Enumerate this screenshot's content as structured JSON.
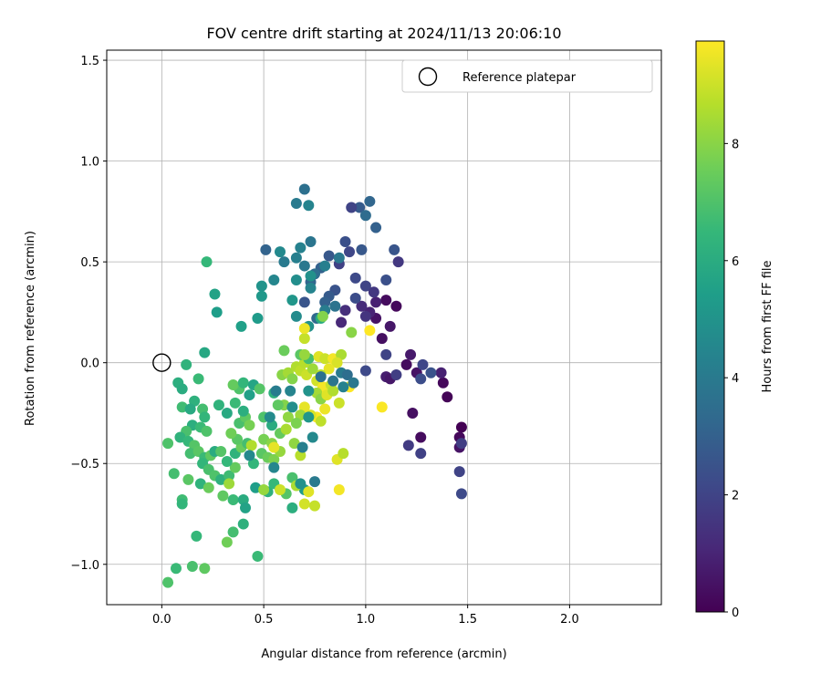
{
  "chart_data": {
    "type": "scatter",
    "title": "FOV centre drift starting at 2024/11/13 20:06:10",
    "xlabel": "Angular distance from reference (arcmin)",
    "ylabel": "Rotation from reference (arcmin)",
    "xlim": [
      -0.27,
      2.45
    ],
    "ylim": [
      -1.2,
      1.55
    ],
    "xticks": [
      0.0,
      0.5,
      1.0,
      1.5,
      2.0
    ],
    "xtick_labels": [
      "0.0",
      "0.5",
      "1.0",
      "1.5",
      "2.0"
    ],
    "yticks": [
      -1.0,
      -0.5,
      0.0,
      0.5,
      1.0,
      1.5
    ],
    "ytick_labels": [
      "−1.0",
      "−0.5",
      "0.0",
      "0.5",
      "1.0",
      "1.5"
    ],
    "grid": true,
    "legend": {
      "placement": "top-right",
      "entries": [
        {
          "label": "Reference platepar",
          "marker": "open-circle",
          "x": 0.0,
          "y": 0.0
        }
      ]
    },
    "colorbar": {
      "label": "Hours from first FF file",
      "colormap": "viridis",
      "range": [
        0,
        9.75
      ],
      "ticks": [
        0,
        2,
        4,
        6,
        8
      ],
      "tick_labels": [
        "0",
        "2",
        "4",
        "6",
        "8"
      ]
    },
    "colormap_stops": [
      "#440154",
      "#482878",
      "#3e4989",
      "#31688e",
      "#26828e",
      "#1f9e89",
      "#35b779",
      "#6ece58",
      "#b5de2b",
      "#fde725"
    ],
    "points": [
      {
        "x": 1.1,
        "y": 0.31,
        "t": 0.3
      },
      {
        "x": 1.15,
        "y": 0.28,
        "t": 0.2
      },
      {
        "x": 1.05,
        "y": 0.22,
        "t": 0.5
      },
      {
        "x": 1.12,
        "y": 0.18,
        "t": 0.6
      },
      {
        "x": 1.08,
        "y": 0.12,
        "t": 0.4
      },
      {
        "x": 1.22,
        "y": 0.04,
        "t": 0.7
      },
      {
        "x": 1.2,
        "y": -0.01,
        "t": 0.3
      },
      {
        "x": 1.25,
        "y": -0.05,
        "t": 0.5
      },
      {
        "x": 1.38,
        "y": -0.1,
        "t": 0.2
      },
      {
        "x": 1.4,
        "y": -0.17,
        "t": 0.1
      },
      {
        "x": 1.23,
        "y": -0.25,
        "t": 0.4
      },
      {
        "x": 1.27,
        "y": -0.37,
        "t": 0.3
      },
      {
        "x": 1.47,
        "y": -0.32,
        "t": 0.0
      },
      {
        "x": 1.46,
        "y": -0.37,
        "t": 0.2
      },
      {
        "x": 1.46,
        "y": -0.42,
        "t": 0.5
      },
      {
        "x": 1.1,
        "y": -0.07,
        "t": 0.8
      },
      {
        "x": 1.12,
        "y": -0.08,
        "t": 0.6
      },
      {
        "x": 1.37,
        "y": -0.05,
        "t": 0.9
      },
      {
        "x": 1.05,
        "y": 0.3,
        "t": 0.9
      },
      {
        "x": 1.02,
        "y": 0.25,
        "t": 1.0
      },
      {
        "x": 0.98,
        "y": 0.28,
        "t": 1.2
      },
      {
        "x": 0.88,
        "y": 0.2,
        "t": 1.1
      },
      {
        "x": 0.9,
        "y": 0.26,
        "t": 1.3
      },
      {
        "x": 1.0,
        "y": 0.23,
        "t": 1.5
      },
      {
        "x": 1.47,
        "y": -0.4,
        "t": 1.8
      },
      {
        "x": 1.46,
        "y": -0.54,
        "t": 2.0
      },
      {
        "x": 1.47,
        "y": -0.65,
        "t": 2.2
      },
      {
        "x": 1.27,
        "y": -0.45,
        "t": 1.9
      },
      {
        "x": 1.21,
        "y": -0.41,
        "t": 1.7
      },
      {
        "x": 1.28,
        "y": -0.01,
        "t": 2.1
      },
      {
        "x": 1.32,
        "y": -0.05,
        "t": 2.5
      },
      {
        "x": 1.27,
        "y": -0.08,
        "t": 2.3
      },
      {
        "x": 1.1,
        "y": 0.04,
        "t": 2.0
      },
      {
        "x": 1.15,
        "y": -0.06,
        "t": 1.8
      },
      {
        "x": 1.0,
        "y": -0.04,
        "t": 2.2
      },
      {
        "x": 1.1,
        "y": 0.41,
        "t": 2.4
      },
      {
        "x": 1.16,
        "y": 0.5,
        "t": 1.6
      },
      {
        "x": 1.14,
        "y": 0.56,
        "t": 2.6
      },
      {
        "x": 1.05,
        "y": 0.67,
        "t": 3.0
      },
      {
        "x": 0.97,
        "y": 0.77,
        "t": 2.8
      },
      {
        "x": 0.93,
        "y": 0.77,
        "t": 2.0
      },
      {
        "x": 1.02,
        "y": 0.8,
        "t": 3.2
      },
      {
        "x": 1.0,
        "y": 0.73,
        "t": 3.4
      },
      {
        "x": 0.9,
        "y": 0.6,
        "t": 2.4
      },
      {
        "x": 0.98,
        "y": 0.56,
        "t": 2.7
      },
      {
        "x": 0.92,
        "y": 0.55,
        "t": 2.1
      },
      {
        "x": 0.87,
        "y": 0.49,
        "t": 1.9
      },
      {
        "x": 0.95,
        "y": 0.42,
        "t": 2.2
      },
      {
        "x": 1.0,
        "y": 0.38,
        "t": 2.0
      },
      {
        "x": 1.04,
        "y": 0.35,
        "t": 1.6
      },
      {
        "x": 0.95,
        "y": 0.32,
        "t": 2.3
      },
      {
        "x": 0.85,
        "y": 0.36,
        "t": 2.5
      },
      {
        "x": 0.82,
        "y": 0.33,
        "t": 2.8
      },
      {
        "x": 0.8,
        "y": 0.3,
        "t": 3.0
      },
      {
        "x": 0.73,
        "y": 0.4,
        "t": 3.2
      },
      {
        "x": 0.78,
        "y": 0.47,
        "t": 3.0
      },
      {
        "x": 0.82,
        "y": 0.53,
        "t": 2.7
      },
      {
        "x": 0.75,
        "y": 0.44,
        "t": 3.5
      },
      {
        "x": 0.7,
        "y": 0.48,
        "t": 3.9
      },
      {
        "x": 0.68,
        "y": 0.57,
        "t": 4.3
      },
      {
        "x": 0.73,
        "y": 0.6,
        "t": 3.8
      },
      {
        "x": 0.7,
        "y": 0.86,
        "t": 3.6
      },
      {
        "x": 0.66,
        "y": 0.79,
        "t": 4.0
      },
      {
        "x": 0.72,
        "y": 0.78,
        "t": 4.4
      },
      {
        "x": 0.58,
        "y": 0.55,
        "t": 4.6
      },
      {
        "x": 0.51,
        "y": 0.56,
        "t": 3.1
      },
      {
        "x": 0.66,
        "y": 0.52,
        "t": 4.2
      },
      {
        "x": 0.55,
        "y": 0.41,
        "t": 4.5
      },
      {
        "x": 0.66,
        "y": 0.41,
        "t": 4.8
      },
      {
        "x": 0.73,
        "y": 0.43,
        "t": 4.9
      },
      {
        "x": 0.7,
        "y": 0.3,
        "t": 2.6
      },
      {
        "x": 0.49,
        "y": 0.38,
        "t": 5.0
      },
      {
        "x": 0.49,
        "y": 0.33,
        "t": 5.2
      },
      {
        "x": 0.47,
        "y": 0.22,
        "t": 5.3
      },
      {
        "x": 0.39,
        "y": 0.18,
        "t": 5.5
      },
      {
        "x": 0.66,
        "y": 0.23,
        "t": 4.7
      },
      {
        "x": 0.72,
        "y": 0.18,
        "t": 4.9
      },
      {
        "x": 0.76,
        "y": 0.22,
        "t": 3.3
      },
      {
        "x": 0.78,
        "y": 0.22,
        "t": 6.0
      },
      {
        "x": 0.8,
        "y": 0.26,
        "t": 4.1
      },
      {
        "x": 0.85,
        "y": 0.28,
        "t": 3.7
      },
      {
        "x": 0.73,
        "y": 0.37,
        "t": 4.4
      },
      {
        "x": 0.8,
        "y": 0.48,
        "t": 4.2
      },
      {
        "x": 0.87,
        "y": 0.52,
        "t": 3.9
      },
      {
        "x": 0.6,
        "y": 0.5,
        "t": 4.0
      },
      {
        "x": 0.64,
        "y": 0.31,
        "t": 5.1
      },
      {
        "x": 0.22,
        "y": 0.5,
        "t": 6.5
      },
      {
        "x": 0.26,
        "y": 0.34,
        "t": 5.6
      },
      {
        "x": 0.27,
        "y": 0.25,
        "t": 5.4
      },
      {
        "x": 0.21,
        "y": 0.05,
        "t": 5.8
      },
      {
        "x": 0.12,
        "y": -0.01,
        "t": 6.3
      },
      {
        "x": 0.08,
        "y": -0.1,
        "t": 6.1
      },
      {
        "x": 0.1,
        "y": -0.13,
        "t": 6.0
      },
      {
        "x": 0.18,
        "y": -0.08,
        "t": 6.6
      },
      {
        "x": 0.16,
        "y": -0.19,
        "t": 6.2
      },
      {
        "x": 0.1,
        "y": -0.22,
        "t": 6.7
      },
      {
        "x": 0.14,
        "y": -0.23,
        "t": 5.9
      },
      {
        "x": 0.2,
        "y": -0.23,
        "t": 6.8
      },
      {
        "x": 0.21,
        "y": -0.27,
        "t": 6.4
      },
      {
        "x": 0.15,
        "y": -0.31,
        "t": 6.1
      },
      {
        "x": 0.19,
        "y": -0.32,
        "t": 6.6
      },
      {
        "x": 0.22,
        "y": -0.34,
        "t": 7.0
      },
      {
        "x": 0.12,
        "y": -0.34,
        "t": 6.9
      },
      {
        "x": 0.09,
        "y": -0.37,
        "t": 6.3
      },
      {
        "x": 0.13,
        "y": -0.39,
        "t": 6.5
      },
      {
        "x": 0.16,
        "y": -0.41,
        "t": 7.1
      },
      {
        "x": 0.14,
        "y": -0.45,
        "t": 6.8
      },
      {
        "x": 0.18,
        "y": -0.44,
        "t": 7.2
      },
      {
        "x": 0.21,
        "y": -0.47,
        "t": 6.6
      },
      {
        "x": 0.24,
        "y": -0.46,
        "t": 7.3
      },
      {
        "x": 0.26,
        "y": -0.44,
        "t": 6.0
      },
      {
        "x": 0.2,
        "y": -0.5,
        "t": 6.4
      },
      {
        "x": 0.23,
        "y": -0.53,
        "t": 6.9
      },
      {
        "x": 0.26,
        "y": -0.56,
        "t": 7.0
      },
      {
        "x": 0.29,
        "y": -0.58,
        "t": 6.2
      },
      {
        "x": 0.33,
        "y": -0.56,
        "t": 6.7
      },
      {
        "x": 0.36,
        "y": -0.52,
        "t": 7.4
      },
      {
        "x": 0.32,
        "y": -0.49,
        "t": 6.5
      },
      {
        "x": 0.29,
        "y": -0.44,
        "t": 7.1
      },
      {
        "x": 0.36,
        "y": -0.45,
        "t": 6.3
      },
      {
        "x": 0.39,
        "y": -0.42,
        "t": 7.5
      },
      {
        "x": 0.42,
        "y": -0.4,
        "t": 6.8
      },
      {
        "x": 0.37,
        "y": -0.38,
        "t": 7.2
      },
      {
        "x": 0.34,
        "y": -0.35,
        "t": 7.6
      },
      {
        "x": 0.38,
        "y": -0.3,
        "t": 6.9
      },
      {
        "x": 0.41,
        "y": -0.27,
        "t": 7.3
      },
      {
        "x": 0.43,
        "y": -0.31,
        "t": 7.7
      },
      {
        "x": 0.4,
        "y": -0.24,
        "t": 6.1
      },
      {
        "x": 0.36,
        "y": -0.2,
        "t": 6.6
      },
      {
        "x": 0.38,
        "y": -0.13,
        "t": 7.0
      },
      {
        "x": 0.35,
        "y": -0.11,
        "t": 7.4
      },
      {
        "x": 0.4,
        "y": -0.1,
        "t": 6.4
      },
      {
        "x": 0.45,
        "y": -0.11,
        "t": 5.7
      },
      {
        "x": 0.48,
        "y": -0.13,
        "t": 7.1
      },
      {
        "x": 0.43,
        "y": -0.16,
        "t": 5.5
      },
      {
        "x": 0.28,
        "y": -0.21,
        "t": 6.3
      },
      {
        "x": 0.32,
        "y": -0.25,
        "t": 5.9
      },
      {
        "x": 0.06,
        "y": -0.55,
        "t": 6.8
      },
      {
        "x": 0.03,
        "y": -0.4,
        "t": 7.0
      },
      {
        "x": 0.13,
        "y": -0.58,
        "t": 7.2
      },
      {
        "x": 0.19,
        "y": -0.6,
        "t": 6.3
      },
      {
        "x": 0.23,
        "y": -0.62,
        "t": 7.5
      },
      {
        "x": 0.3,
        "y": -0.66,
        "t": 7.3
      },
      {
        "x": 0.35,
        "y": -0.68,
        "t": 6.6
      },
      {
        "x": 0.4,
        "y": -0.68,
        "t": 6.0
      },
      {
        "x": 0.41,
        "y": -0.72,
        "t": 5.6
      },
      {
        "x": 0.46,
        "y": -0.62,
        "t": 5.4
      },
      {
        "x": 0.52,
        "y": -0.64,
        "t": 6.2
      },
      {
        "x": 0.55,
        "y": -0.6,
        "t": 6.5
      },
      {
        "x": 0.61,
        "y": -0.65,
        "t": 7.1
      },
      {
        "x": 0.64,
        "y": -0.57,
        "t": 6.9
      },
      {
        "x": 0.64,
        "y": -0.72,
        "t": 6.1
      },
      {
        "x": 0.7,
        "y": -0.63,
        "t": 5.3
      },
      {
        "x": 0.1,
        "y": -0.68,
        "t": 6.7
      },
      {
        "x": 0.1,
        "y": -0.7,
        "t": 6.4
      },
      {
        "x": 0.17,
        "y": -0.86,
        "t": 6.5
      },
      {
        "x": 0.35,
        "y": -0.84,
        "t": 6.8
      },
      {
        "x": 0.4,
        "y": -0.8,
        "t": 6.2
      },
      {
        "x": 0.32,
        "y": -0.89,
        "t": 7.6
      },
      {
        "x": 0.47,
        "y": -0.96,
        "t": 6.6
      },
      {
        "x": 0.07,
        "y": -1.02,
        "t": 6.6
      },
      {
        "x": 0.15,
        "y": -1.01,
        "t": 6.9
      },
      {
        "x": 0.21,
        "y": -1.02,
        "t": 7.3
      },
      {
        "x": 0.03,
        "y": -1.09,
        "t": 7.0
      },
      {
        "x": 0.49,
        "y": -0.45,
        "t": 7.2
      },
      {
        "x": 0.52,
        "y": -0.47,
        "t": 7.5
      },
      {
        "x": 0.55,
        "y": -0.48,
        "t": 7.8
      },
      {
        "x": 0.45,
        "y": -0.5,
        "t": 6.4
      },
      {
        "x": 0.5,
        "y": -0.38,
        "t": 7.7
      },
      {
        "x": 0.54,
        "y": -0.4,
        "t": 8.0
      },
      {
        "x": 0.58,
        "y": -0.44,
        "t": 8.2
      },
      {
        "x": 0.58,
        "y": -0.35,
        "t": 7.4
      },
      {
        "x": 0.61,
        "y": -0.33,
        "t": 8.5
      },
      {
        "x": 0.62,
        "y": -0.27,
        "t": 8.1
      },
      {
        "x": 0.6,
        "y": -0.21,
        "t": 7.9
      },
      {
        "x": 0.57,
        "y": -0.21,
        "t": 7.3
      },
      {
        "x": 0.54,
        "y": -0.31,
        "t": 6.0
      },
      {
        "x": 0.5,
        "y": -0.27,
        "t": 7.0
      },
      {
        "x": 0.55,
        "y": -0.15,
        "t": 6.2
      },
      {
        "x": 0.59,
        "y": -0.06,
        "t": 8.0
      },
      {
        "x": 0.62,
        "y": -0.05,
        "t": 8.4
      },
      {
        "x": 0.64,
        "y": -0.08,
        "t": 7.9
      },
      {
        "x": 0.6,
        "y": 0.06,
        "t": 7.5
      },
      {
        "x": 0.66,
        "y": -0.02,
        "t": 8.6
      },
      {
        "x": 0.68,
        "y": -0.04,
        "t": 8.8
      },
      {
        "x": 0.71,
        "y": -0.06,
        "t": 9.0
      },
      {
        "x": 0.74,
        "y": -0.03,
        "t": 8.3
      },
      {
        "x": 0.7,
        "y": 0.0,
        "t": 8.7
      },
      {
        "x": 0.68,
        "y": 0.04,
        "t": 7.2
      },
      {
        "x": 0.72,
        "y": 0.02,
        "t": 6.8
      },
      {
        "x": 0.7,
        "y": 0.12,
        "t": 8.9
      },
      {
        "x": 0.7,
        "y": 0.17,
        "t": 9.5
      },
      {
        "x": 0.77,
        "y": 0.03,
        "t": 9.3
      },
      {
        "x": 0.8,
        "y": 0.02,
        "t": 9.0
      },
      {
        "x": 0.84,
        "y": 0.02,
        "t": 9.6
      },
      {
        "x": 0.88,
        "y": 0.04,
        "t": 8.5
      },
      {
        "x": 0.86,
        "y": 0.0,
        "t": 9.2
      },
      {
        "x": 0.82,
        "y": -0.03,
        "t": 9.4
      },
      {
        "x": 0.78,
        "y": -0.06,
        "t": 8.7
      },
      {
        "x": 0.76,
        "y": -0.09,
        "t": 9.1
      },
      {
        "x": 0.79,
        "y": -0.12,
        "t": 9.6
      },
      {
        "x": 0.83,
        "y": -0.11,
        "t": 8.9
      },
      {
        "x": 0.76,
        "y": -0.15,
        "t": 8.4
      },
      {
        "x": 0.78,
        "y": -0.18,
        "t": 8.0
      },
      {
        "x": 0.81,
        "y": -0.16,
        "t": 9.3
      },
      {
        "x": 0.84,
        "y": -0.14,
        "t": 8.6
      },
      {
        "x": 0.87,
        "y": -0.2,
        "t": 9.0
      },
      {
        "x": 0.8,
        "y": -0.23,
        "t": 9.5
      },
      {
        "x": 0.76,
        "y": -0.27,
        "t": 9.7
      },
      {
        "x": 0.78,
        "y": -0.29,
        "t": 8.8
      },
      {
        "x": 0.73,
        "y": -0.26,
        "t": 9.2
      },
      {
        "x": 0.7,
        "y": -0.22,
        "t": 9.4
      },
      {
        "x": 0.68,
        "y": -0.26,
        "t": 8.3
      },
      {
        "x": 0.66,
        "y": -0.3,
        "t": 7.8
      },
      {
        "x": 0.65,
        "y": -0.4,
        "t": 8.1
      },
      {
        "x": 0.68,
        "y": -0.46,
        "t": 8.7
      },
      {
        "x": 0.66,
        "y": -0.61,
        "t": 8.5
      },
      {
        "x": 0.7,
        "y": -0.7,
        "t": 9.1
      },
      {
        "x": 0.75,
        "y": -0.71,
        "t": 8.9
      },
      {
        "x": 0.72,
        "y": -0.64,
        "t": 9.3
      },
      {
        "x": 0.58,
        "y": -0.63,
        "t": 9.0
      },
      {
        "x": 0.55,
        "y": -0.42,
        "t": 9.4
      },
      {
        "x": 0.5,
        "y": -0.63,
        "t": 8.2
      },
      {
        "x": 0.44,
        "y": -0.41,
        "t": 8.6
      },
      {
        "x": 0.33,
        "y": -0.6,
        "t": 8.3
      },
      {
        "x": 0.86,
        "y": -0.48,
        "t": 9.3
      },
      {
        "x": 0.89,
        "y": -0.45,
        "t": 8.7
      },
      {
        "x": 0.87,
        "y": -0.63,
        "t": 9.6
      },
      {
        "x": 0.92,
        "y": -0.12,
        "t": 9.8
      },
      {
        "x": 1.08,
        "y": -0.22,
        "t": 9.7
      },
      {
        "x": 1.02,
        "y": 0.16,
        "t": 9.8
      },
      {
        "x": 0.93,
        "y": 0.15,
        "t": 8.0
      },
      {
        "x": 0.79,
        "y": 0.23,
        "t": 7.9
      },
      {
        "x": 0.7,
        "y": 0.04,
        "t": 8.2
      },
      {
        "x": 0.74,
        "y": -0.37,
        "t": 4.6
      },
      {
        "x": 0.69,
        "y": -0.42,
        "t": 4.2
      },
      {
        "x": 0.64,
        "y": -0.22,
        "t": 4.8
      },
      {
        "x": 0.63,
        "y": -0.14,
        "t": 4.4
      },
      {
        "x": 0.72,
        "y": -0.14,
        "t": 5.0
      },
      {
        "x": 0.72,
        "y": -0.27,
        "t": 5.1
      },
      {
        "x": 0.88,
        "y": -0.05,
        "t": 4.0
      },
      {
        "x": 0.84,
        "y": -0.09,
        "t": 3.8
      },
      {
        "x": 0.91,
        "y": -0.06,
        "t": 3.5
      },
      {
        "x": 0.89,
        "y": -0.12,
        "t": 4.3
      },
      {
        "x": 0.94,
        "y": -0.1,
        "t": 3.9
      },
      {
        "x": 0.78,
        "y": -0.07,
        "t": 3.6
      },
      {
        "x": 0.56,
        "y": -0.14,
        "t": 4.1
      },
      {
        "x": 0.53,
        "y": -0.27,
        "t": 4.7
      },
      {
        "x": 0.55,
        "y": -0.52,
        "t": 4.5
      },
      {
        "x": 0.75,
        "y": -0.59,
        "t": 4.0
      },
      {
        "x": 0.68,
        "y": -0.6,
        "t": 4.9
      },
      {
        "x": 0.43,
        "y": -0.46,
        "t": 4.6
      }
    ]
  }
}
